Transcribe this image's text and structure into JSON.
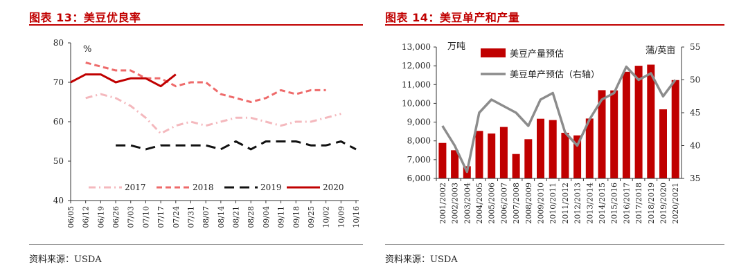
{
  "left": {
    "title": "图表 13：美豆优良率",
    "source": "资料来源：USDA",
    "chart_data": {
      "type": "line",
      "title": "图表 13：美豆优良率",
      "unit_label": "%",
      "ylim": [
        40,
        80
      ],
      "yticks": [
        "40",
        "50",
        "60",
        "70",
        "80"
      ],
      "categories": [
        "06/05",
        "06/12",
        "06/19",
        "06/26",
        "07/03",
        "07/10",
        "07/17",
        "07/24",
        "07/31",
        "08/07",
        "08/14",
        "08/21",
        "08/28",
        "09/04",
        "09/11",
        "09/18",
        "09/25",
        "10/02",
        "10/09",
        "10/16"
      ],
      "legend_placement": "bottom",
      "series": [
        {
          "name": "2017",
          "color": "#f4b8bd",
          "style": "dashdot",
          "values": [
            null,
            66,
            67,
            66,
            64,
            61,
            57,
            59,
            60,
            59,
            60,
            61,
            61,
            60,
            59,
            60,
            60,
            61,
            62,
            null
          ]
        },
        {
          "name": "2018",
          "color": "#ee6a6a",
          "style": "dash",
          "values": [
            null,
            75,
            74,
            73,
            73,
            71,
            71,
            69,
            70,
            70,
            67,
            66,
            65,
            66,
            68,
            67,
            68,
            68,
            null,
            null
          ]
        },
        {
          "name": "2019",
          "color": "#111111",
          "style": "longdash",
          "values": [
            null,
            null,
            null,
            54,
            54,
            53,
            54,
            54,
            54,
            54,
            53,
            55,
            53,
            55,
            55,
            55,
            54,
            54,
            55,
            53
          ]
        },
        {
          "name": "2020",
          "color": "#c00000",
          "style": "solid",
          "values": [
            70,
            72,
            72,
            70,
            71,
            71,
            69,
            72,
            null,
            null,
            null,
            null,
            null,
            null,
            null,
            null,
            null,
            null,
            null,
            null
          ]
        }
      ]
    }
  },
  "right": {
    "title": "图表 14：美豆单产和产量",
    "source": "资料来源：USDA",
    "chart_data": {
      "type": "bar",
      "title": "图表 14：美豆单产和产量",
      "left_unit_label": "万吨",
      "right_unit_label": "蒲/英亩",
      "ylim_left": [
        6000,
        13000
      ],
      "yticks_left": [
        "6,000",
        "7,000",
        "8,000",
        "9,000",
        "10,000",
        "11,000",
        "12,000",
        "13,000"
      ],
      "ylim_right": [
        35,
        55
      ],
      "yticks_right": [
        "35",
        "40",
        "45",
        "50",
        "55"
      ],
      "categories": [
        "2001/2002",
        "2002/2003",
        "2003/2004",
        "2004/2005",
        "2005/2006",
        "2006/2007",
        "2007/2008",
        "2008/2009",
        "2009/2010",
        "2010/2011",
        "2011/2012",
        "2012/2013",
        "2013/2014",
        "2014/2015",
        "2015/2016",
        "2016/2017",
        "2017/2018",
        "2018/2019",
        "2019/2020",
        "2020/2021"
      ],
      "legend_placement": "top-left",
      "series": [
        {
          "name": "美豆产量预估",
          "type": "bar",
          "axis": "left",
          "color": "#c00000",
          "values": [
            7890,
            7500,
            6650,
            8530,
            8390,
            8740,
            7300,
            8090,
            9180,
            9110,
            8430,
            8290,
            9190,
            10700,
            10690,
            11680,
            12000,
            12060,
            9680,
            11240
          ]
        },
        {
          "name": "美豆单产预估（右轴）",
          "type": "line",
          "axis": "right",
          "color": "#8c8c8c",
          "values": [
            43,
            40,
            36,
            45,
            47,
            46,
            45,
            43,
            47,
            48,
            42,
            40,
            44,
            47,
            48,
            52,
            50,
            51,
            47.5,
            50
          ]
        }
      ]
    }
  }
}
